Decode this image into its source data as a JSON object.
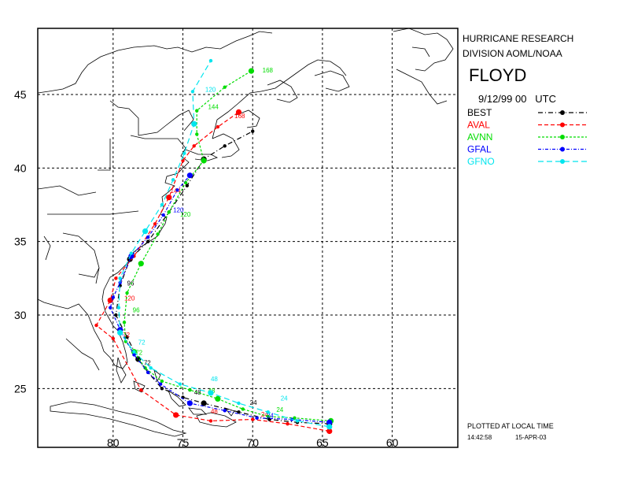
{
  "panel": {
    "org_line1": "HURRICANE RESEARCH",
    "org_line2": "DIVISION AOML/NOAA",
    "storm_name": "FLOYD",
    "init_time": "9/12/99 00   UTC",
    "legend": [
      {
        "name": "BEST",
        "color": "#000000"
      },
      {
        "name": "AVAL",
        "color": "#ff0000"
      },
      {
        "name": "AVNN",
        "color": "#00dd00"
      },
      {
        "name": "GFAL",
        "color": "#0000ff"
      },
      {
        "name": "GFNO",
        "color": "#00e5ee"
      }
    ],
    "footer_line1": "PLOTTED AT LOCAL TIME",
    "footer_time": "14:42:58",
    "footer_date": "15-APR-03"
  },
  "axes": {
    "lon_ticks": [
      "80",
      "75",
      "70",
      "65",
      "60"
    ],
    "lat_ticks": [
      "45",
      "40",
      "35",
      "30",
      "25"
    ],
    "lon_values": [
      80,
      75,
      70,
      65,
      60
    ],
    "lat_values": [
      45,
      40,
      35,
      30,
      25
    ],
    "lon_range": [
      85.4,
      55.3
    ],
    "lat_range": [
      21.0,
      49.5
    ]
  },
  "chart_data": {
    "type": "scatter",
    "title": "FLOYD",
    "series": [
      {
        "name": "BEST",
        "color": "#000000",
        "dash": "6,3,1,3",
        "points": [
          [
            64.5,
            22.6
          ],
          [
            66.8,
            22.7
          ],
          [
            68.8,
            22.9
          ],
          [
            71.0,
            23.4
          ],
          [
            73.5,
            24.0
          ],
          [
            75.0,
            24.4
          ],
          [
            76.5,
            25.0
          ],
          [
            77.5,
            26.1
          ],
          [
            78.2,
            27.0
          ],
          [
            79.0,
            28.5
          ],
          [
            79.8,
            30.0
          ],
          [
            79.5,
            32.0
          ],
          [
            78.8,
            33.8
          ],
          [
            77.5,
            35.0
          ],
          [
            76.0,
            37.0
          ],
          [
            74.7,
            38.8
          ],
          [
            73.5,
            40.6
          ],
          [
            72.0,
            41.5
          ],
          [
            70.0,
            42.5
          ]
        ],
        "labels": [
          {
            "t": "24",
            "lon": 70.2,
            "lat": 23.9
          },
          {
            "t": "48",
            "lon": 74.2,
            "lat": 24.6
          },
          {
            "t": "72",
            "lon": 77.8,
            "lat": 26.6
          },
          {
            "t": "96",
            "lon": 79.0,
            "lat": 32.0
          }
        ]
      },
      {
        "name": "AVAL",
        "color": "#ff0000",
        "dash": "5,3",
        "points": [
          [
            64.5,
            22.1
          ],
          [
            67.5,
            22.6
          ],
          [
            70.0,
            22.9
          ],
          [
            73.0,
            22.8
          ],
          [
            75.5,
            23.2
          ],
          [
            78.0,
            24.9
          ],
          [
            80.0,
            28.4
          ],
          [
            81.2,
            29.3
          ],
          [
            80.2,
            31.0
          ],
          [
            79.8,
            32.5
          ],
          [
            78.5,
            34.0
          ],
          [
            77.0,
            36.2
          ],
          [
            76.0,
            38.0
          ],
          [
            75.0,
            40.5
          ],
          [
            74.2,
            41.5
          ],
          [
            72.5,
            42.8
          ],
          [
            71.0,
            43.8
          ]
        ],
        "labels": [
          {
            "t": "24",
            "lon": 69.4,
            "lat": 23.1
          },
          {
            "t": "48",
            "lon": 73.0,
            "lat": 23.3
          },
          {
            "t": "72",
            "lon": 79.3,
            "lat": 28.5
          },
          {
            "t": "120",
            "lon": 79.2,
            "lat": 31.0
          },
          {
            "t": "144",
            "lon": 75.9,
            "lat": 38.3
          },
          {
            "t": "168",
            "lon": 71.3,
            "lat": 43.4
          }
        ]
      },
      {
        "name": "AVNN",
        "color": "#00dd00",
        "dash": "3,2",
        "points": [
          [
            64.4,
            22.8
          ],
          [
            67.0,
            23.0
          ],
          [
            68.9,
            23.1
          ],
          [
            70.7,
            23.6
          ],
          [
            72.5,
            24.3
          ],
          [
            74.5,
            24.9
          ],
          [
            76.5,
            25.5
          ],
          [
            77.7,
            26.4
          ],
          [
            78.5,
            27.5
          ],
          [
            79.1,
            28.2
          ],
          [
            79.2,
            29.5
          ],
          [
            79.0,
            31.5
          ],
          [
            78.0,
            33.5
          ],
          [
            76.8,
            35.5
          ],
          [
            76.0,
            37.0
          ],
          [
            74.8,
            39.0
          ],
          [
            73.5,
            40.5
          ],
          [
            74.0,
            42.3
          ],
          [
            74.0,
            43.9
          ],
          [
            72.0,
            45.5
          ],
          [
            70.1,
            46.6
          ]
        ],
        "labels": [
          {
            "t": "24",
            "lon": 68.3,
            "lat": 23.4
          },
          {
            "t": "48",
            "lon": 73.2,
            "lat": 24.7
          },
          {
            "t": "72",
            "lon": 78.4,
            "lat": 27.3
          },
          {
            "t": "96",
            "lon": 78.6,
            "lat": 30.2
          },
          {
            "t": "120",
            "lon": 75.2,
            "lat": 36.7
          },
          {
            "t": "144",
            "lon": 73.2,
            "lat": 44.0
          },
          {
            "t": "168",
            "lon": 69.3,
            "lat": 46.5
          }
        ]
      },
      {
        "name": "GFAL",
        "color": "#0000ff",
        "dash": "4,2,1,2",
        "points": [
          [
            64.5,
            22.7
          ],
          [
            67.2,
            22.9
          ],
          [
            69.7,
            23.0
          ],
          [
            72.0,
            23.5
          ],
          [
            74.5,
            24.0
          ],
          [
            76.6,
            25.3
          ],
          [
            77.5,
            26.1
          ],
          [
            78.5,
            27.3
          ],
          [
            79.5,
            29.0
          ],
          [
            80.2,
            30.5
          ],
          [
            80.0,
            31.2
          ],
          [
            79.5,
            32.2
          ],
          [
            78.7,
            34.0
          ],
          [
            77.5,
            35.3
          ],
          [
            76.4,
            36.8
          ],
          [
            75.4,
            38.5
          ],
          [
            74.5,
            39.5
          ]
        ],
        "labels": [
          {
            "t": "24",
            "lon": 69.0,
            "lat": 23.0
          },
          {
            "t": "120",
            "lon": 75.7,
            "lat": 37.0
          }
        ]
      },
      {
        "name": "GFNO",
        "color": "#00e5ee",
        "dash": "7,4",
        "points": [
          [
            64.5,
            22.4
          ],
          [
            66.8,
            22.8
          ],
          [
            68.9,
            23.4
          ],
          [
            71.0,
            24.0
          ],
          [
            73.0,
            24.7
          ],
          [
            75.2,
            25.3
          ],
          [
            77.3,
            26.4
          ],
          [
            78.5,
            27.5
          ],
          [
            79.5,
            28.8
          ],
          [
            79.6,
            30.5
          ],
          [
            79.5,
            32.5
          ],
          [
            78.7,
            34.2
          ],
          [
            77.7,
            35.7
          ],
          [
            76.5,
            37.5
          ],
          [
            75.7,
            39.2
          ],
          [
            74.9,
            41.0
          ],
          [
            74.2,
            43.0
          ],
          [
            74.3,
            45.2
          ],
          [
            73.0,
            47.3
          ]
        ],
        "labels": [
          {
            "t": "24",
            "lon": 68.0,
            "lat": 24.2
          },
          {
            "t": "48",
            "lon": 73.0,
            "lat": 25.5
          },
          {
            "t": "72",
            "lon": 78.2,
            "lat": 28.0
          },
          {
            "t": "120",
            "lon": 73.4,
            "lat": 45.2
          }
        ]
      }
    ]
  }
}
